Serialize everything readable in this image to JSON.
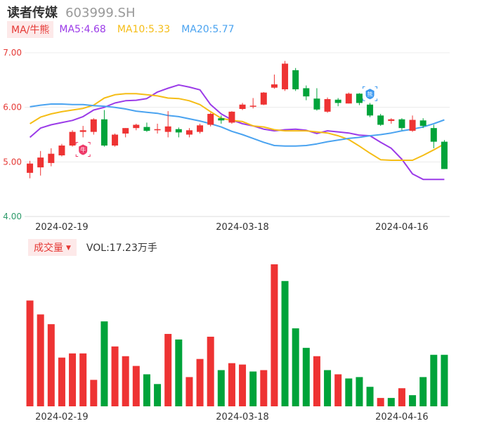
{
  "header": {
    "name": "读者传媒",
    "code": "603999.SH"
  },
  "ma_legend": {
    "tag": "MA/牛熊",
    "items": [
      {
        "label": "MA5:4.68",
        "color": "#9b3be8"
      },
      {
        "label": "MA10:5.33",
        "color": "#f5bd16"
      },
      {
        "label": "MA20:5.77",
        "color": "#4aa3f0"
      }
    ]
  },
  "volume_legend": {
    "tag": "成交量",
    "text": "VOL:17.23万手"
  },
  "colors": {
    "up": "#ee3333",
    "down": "#00a33a",
    "grid": "#ececec",
    "price_axis": "#e53935",
    "low_axis": "#2e9b6b"
  },
  "chart_data": [
    {
      "type": "candlestick",
      "yticks": [
        "7.00",
        "6.00",
        "5.00",
        "4.00"
      ],
      "ylim": [
        4.0,
        7.0
      ],
      "xticks": [
        "2024-02-19",
        "2024-03-18",
        "2024-04-16"
      ],
      "xtick_index": [
        3,
        20,
        35
      ],
      "candles": [
        {
          "o": 4.8,
          "c": 4.97,
          "h": 5.02,
          "l": 4.7
        },
        {
          "o": 4.9,
          "c": 5.08,
          "h": 5.2,
          "l": 4.75
        },
        {
          "o": 4.98,
          "c": 5.15,
          "h": 5.25,
          "l": 4.92
        },
        {
          "o": 5.12,
          "c": 5.3,
          "h": 5.33,
          "l": 5.1
        },
        {
          "o": 5.3,
          "c": 5.55,
          "h": 5.58,
          "l": 5.28
        },
        {
          "o": 5.55,
          "c": 5.58,
          "h": 5.66,
          "l": 5.45
        },
        {
          "o": 5.55,
          "c": 5.78,
          "h": 5.8,
          "l": 5.5
        },
        {
          "o": 5.78,
          "c": 5.3,
          "h": 5.95,
          "l": 5.28
        },
        {
          "o": 5.3,
          "c": 5.5,
          "h": 5.52,
          "l": 5.28
        },
        {
          "o": 5.52,
          "c": 5.62,
          "h": 5.62,
          "l": 5.45
        },
        {
          "o": 5.62,
          "c": 5.68,
          "h": 5.7,
          "l": 5.58
        },
        {
          "o": 5.64,
          "c": 5.57,
          "h": 5.72,
          "l": 5.55
        },
        {
          "o": 5.58,
          "c": 5.6,
          "h": 5.7,
          "l": 5.52
        },
        {
          "o": 5.55,
          "c": 5.65,
          "h": 5.93,
          "l": 5.45
        },
        {
          "o": 5.6,
          "c": 5.54,
          "h": 5.63,
          "l": 5.45
        },
        {
          "o": 5.5,
          "c": 5.58,
          "h": 5.62,
          "l": 5.45
        },
        {
          "o": 5.55,
          "c": 5.67,
          "h": 5.7,
          "l": 5.52
        },
        {
          "o": 5.68,
          "c": 5.88,
          "h": 5.9,
          "l": 5.65
        },
        {
          "o": 5.8,
          "c": 5.76,
          "h": 5.85,
          "l": 5.7
        },
        {
          "o": 5.72,
          "c": 5.92,
          "h": 5.93,
          "l": 5.7
        },
        {
          "o": 5.97,
          "c": 6.05,
          "h": 6.08,
          "l": 5.95
        },
        {
          "o": 6.02,
          "c": 6.03,
          "h": 6.17,
          "l": 5.98
        },
        {
          "o": 6.05,
          "c": 6.27,
          "h": 6.28,
          "l": 6.04
        },
        {
          "o": 6.36,
          "c": 6.42,
          "h": 6.6,
          "l": 6.34
        },
        {
          "o": 6.33,
          "c": 6.8,
          "h": 6.85,
          "l": 6.3
        },
        {
          "o": 6.68,
          "c": 6.33,
          "h": 6.72,
          "l": 6.3
        },
        {
          "o": 6.35,
          "c": 6.2,
          "h": 6.4,
          "l": 6.13
        },
        {
          "o": 6.16,
          "c": 5.96,
          "h": 6.35,
          "l": 5.94
        },
        {
          "o": 5.92,
          "c": 6.15,
          "h": 6.18,
          "l": 5.9
        },
        {
          "o": 6.14,
          "c": 6.08,
          "h": 6.17,
          "l": 6.02
        },
        {
          "o": 6.07,
          "c": 6.25,
          "h": 6.27,
          "l": 6.07
        },
        {
          "o": 6.25,
          "c": 6.08,
          "h": 6.26,
          "l": 6.04
        },
        {
          "o": 6.05,
          "c": 5.85,
          "h": 6.08,
          "l": 5.82
        },
        {
          "o": 5.85,
          "c": 5.68,
          "h": 5.88,
          "l": 5.66
        },
        {
          "o": 5.75,
          "c": 5.78,
          "h": 5.8,
          "l": 5.7
        },
        {
          "o": 5.78,
          "c": 5.62,
          "h": 5.8,
          "l": 5.58
        },
        {
          "o": 5.57,
          "c": 5.77,
          "h": 5.85,
          "l": 5.55
        },
        {
          "o": 5.76,
          "c": 5.66,
          "h": 5.8,
          "l": 5.62
        },
        {
          "o": 5.62,
          "c": 5.37,
          "h": 5.68,
          "l": 5.25
        },
        {
          "o": 5.37,
          "c": 4.87,
          "h": 5.4,
          "l": 4.87
        }
      ],
      "series": [
        {
          "name": "MA5",
          "color": "#9b3be8",
          "values": [
            5.45,
            5.62,
            5.68,
            5.72,
            5.76,
            5.83,
            5.95,
            6.0,
            6.08,
            6.12,
            6.13,
            6.16,
            6.28,
            6.35,
            6.41,
            6.37,
            6.32,
            6.05,
            5.88,
            5.77,
            5.7,
            5.66,
            5.6,
            5.57,
            5.59,
            5.6,
            5.58,
            5.52,
            5.57,
            5.55,
            5.53,
            5.49,
            5.48,
            5.36,
            5.25,
            5.05,
            4.78,
            4.68,
            4.68,
            4.68
          ]
        },
        {
          "name": "MA10",
          "color": "#f5bd16",
          "values": [
            5.7,
            5.82,
            5.88,
            5.92,
            5.95,
            5.98,
            6.04,
            6.17,
            6.23,
            6.25,
            6.25,
            6.23,
            6.21,
            6.17,
            6.16,
            6.12,
            6.05,
            5.92,
            5.8,
            5.76,
            5.74,
            5.66,
            5.64,
            5.59,
            5.57,
            5.57,
            5.57,
            5.55,
            5.53,
            5.48,
            5.41,
            5.29,
            5.16,
            5.04,
            5.03,
            5.03,
            5.03,
            5.12,
            5.22,
            5.33
          ]
        },
        {
          "name": "MA20",
          "color": "#4aa3f0",
          "values": [
            6.01,
            6.04,
            6.06,
            6.06,
            6.05,
            6.05,
            6.03,
            6.02,
            6.0,
            5.97,
            5.93,
            5.91,
            5.89,
            5.85,
            5.83,
            5.79,
            5.75,
            5.7,
            5.64,
            5.56,
            5.5,
            5.43,
            5.36,
            5.3,
            5.29,
            5.29,
            5.3,
            5.33,
            5.37,
            5.4,
            5.43,
            5.45,
            5.48,
            5.5,
            5.53,
            5.57,
            5.6,
            5.64,
            5.7,
            5.77
          ]
        }
      ],
      "markers": [
        {
          "index": 5,
          "price": 5.23,
          "label": "牛",
          "kind": "bull"
        },
        {
          "index": 32,
          "price": 6.25,
          "label": "熊",
          "kind": "bear"
        }
      ]
    },
    {
      "type": "bar",
      "title": "成交量",
      "xticks": [
        "2024-02-19",
        "2024-03-18",
        "2024-04-16"
      ],
      "values": [
        76,
        66,
        59,
        35,
        38,
        38,
        19,
        61,
        43,
        36,
        29,
        23,
        16,
        52,
        48,
        21,
        34,
        50,
        26,
        31,
        30,
        25,
        26,
        102,
        90,
        56,
        42,
        36,
        26,
        23,
        20,
        21,
        14,
        6,
        6,
        13,
        8,
        21,
        37,
        37
      ],
      "up": [
        true,
        true,
        true,
        true,
        true,
        true,
        true,
        false,
        true,
        true,
        true,
        false,
        false,
        true,
        false,
        true,
        true,
        true,
        false,
        true,
        true,
        false,
        true,
        true,
        false,
        false,
        false,
        true,
        false,
        true,
        false,
        false,
        false,
        true,
        false,
        true,
        false,
        false,
        false,
        false
      ]
    }
  ]
}
